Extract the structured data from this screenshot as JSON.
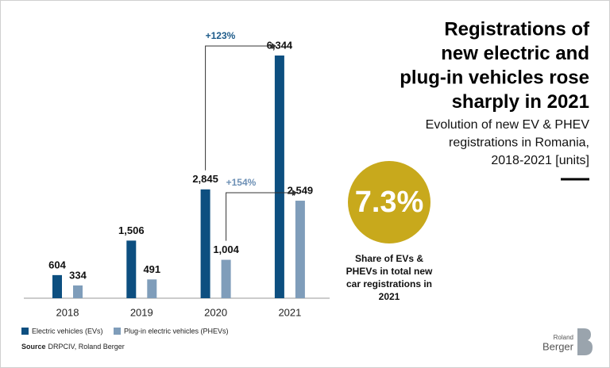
{
  "chart_data": {
    "type": "bar",
    "title": [
      "Registrations of",
      "new electric and",
      "plug-in vehicles rose",
      "sharply in 2021"
    ],
    "subtitle": [
      "Evolution of new EV & PHEV",
      "registrations in Romania,",
      "2018-2021 [units]"
    ],
    "categories": [
      "2018",
      "2019",
      "2020",
      "2021"
    ],
    "series": [
      {
        "name": "Electric vehicles (EVs)",
        "color": "#0d4f80",
        "values": [
          604,
          1506,
          2845,
          6344
        ],
        "value_labels": [
          "604",
          "1,506",
          "2,845",
          "6,344"
        ]
      },
      {
        "name": "Plug-in electric vehicles (PHEVs)",
        "color": "#7f9dba",
        "values": [
          334,
          491,
          1004,
          2549
        ],
        "value_labels": [
          "334",
          "491",
          "1,004",
          "2,549"
        ]
      }
    ],
    "annotations": [
      {
        "label": "+123%",
        "color": "#1d5b8a"
      },
      {
        "label": "+154%",
        "color": "#6d90b5"
      }
    ]
  },
  "highlight": {
    "value": 7.3,
    "label": "7.3%",
    "color": "#c8a91c",
    "caption": [
      "Share of EVs &",
      "PHEVs in total new",
      "car registrations in",
      "2021"
    ]
  },
  "source": {
    "label": "Source",
    "text": "DRPCIV, Roland Berger"
  },
  "logo": {
    "line1": "Roland",
    "line2": "Berger"
  }
}
